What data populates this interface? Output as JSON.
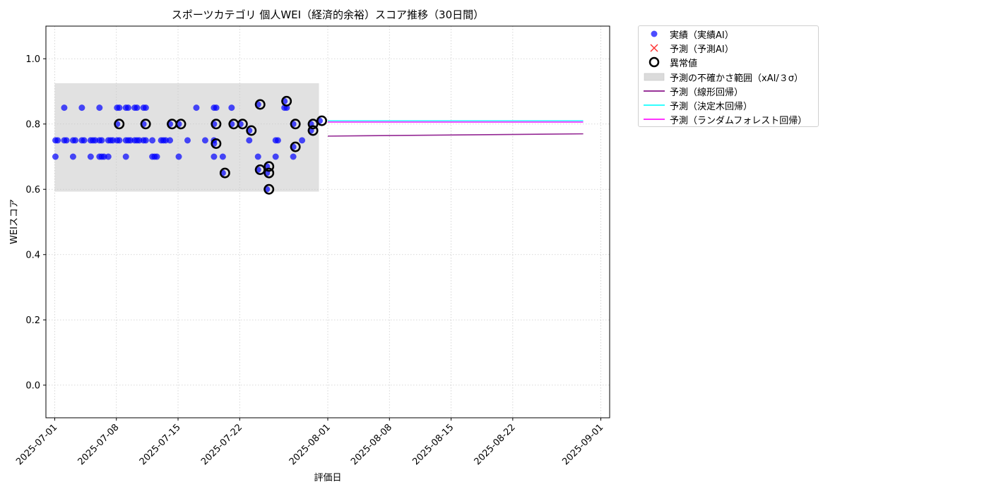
{
  "chart_data": {
    "type": "scatter",
    "title": "スポーツカテゴリ 個人WEI（経済的余裕）スコア推移（30日間）",
    "xlabel": "評価日",
    "ylabel": "WEIスコア",
    "xlim": [
      "2025-06-30",
      "2025-09-02"
    ],
    "ylim": [
      -0.1,
      1.1
    ],
    "x_ticks": [
      "2025-07-01",
      "2025-07-08",
      "2025-07-15",
      "2025-07-22",
      "2025-08-01",
      "2025-08-08",
      "2025-08-15",
      "2025-08-22",
      "2025-09-01"
    ],
    "y_ticks": [
      0.0,
      0.2,
      0.4,
      0.6,
      0.8,
      1.0
    ],
    "y_tick_labels": [
      "0.0",
      "0.2",
      "0.4",
      "0.6",
      "0.8",
      "1.0"
    ],
    "grid": true,
    "legend_placement": "outside-top-right",
    "colors": {
      "actual": "#0000ff",
      "predicted_marker": "#ff0000",
      "anomaly_edge": "#000000",
      "uncertainty_band": "#c8c8c8",
      "linear": "#800080",
      "decision_tree": "#00ffff",
      "random_forest": "#ff00ff",
      "grid": "#cccccc"
    },
    "uncertainty_band": {
      "x": [
        "2025-07-01",
        "2025-07-31"
      ],
      "y": [
        0.593,
        0.925
      ]
    },
    "series": [
      {
        "name": "実績（実績AI）",
        "kind": "scatter",
        "points": [
          [
            "2025-07-01",
            0.75
          ],
          [
            "2025-07-01",
            0.7
          ],
          [
            "2025-07-01",
            0.75
          ],
          [
            "2025-07-02",
            0.75
          ],
          [
            "2025-07-02",
            0.85
          ],
          [
            "2025-07-02",
            0.75
          ],
          [
            "2025-07-03",
            0.7
          ],
          [
            "2025-07-03",
            0.75
          ],
          [
            "2025-07-03",
            0.75
          ],
          [
            "2025-07-04",
            0.75
          ],
          [
            "2025-07-04",
            0.75
          ],
          [
            "2025-07-04",
            0.85
          ],
          [
            "2025-07-05",
            0.75
          ],
          [
            "2025-07-05",
            0.75
          ],
          [
            "2025-07-05",
            0.7
          ],
          [
            "2025-07-05",
            0.75
          ],
          [
            "2025-07-06",
            0.7
          ],
          [
            "2025-07-06",
            0.7
          ],
          [
            "2025-07-06",
            0.75
          ],
          [
            "2025-07-06",
            0.75
          ],
          [
            "2025-07-06",
            0.85
          ],
          [
            "2025-07-06",
            0.7
          ],
          [
            "2025-07-07",
            0.75
          ],
          [
            "2025-07-07",
            0.75
          ],
          [
            "2025-07-07",
            0.75
          ],
          [
            "2025-07-07",
            0.7
          ],
          [
            "2025-07-08",
            0.75
          ],
          [
            "2025-07-08",
            0.75
          ],
          [
            "2025-07-08",
            0.85
          ],
          [
            "2025-07-08",
            0.85
          ],
          [
            "2025-07-08",
            0.8
          ],
          [
            "2025-07-09",
            0.75
          ],
          [
            "2025-07-09",
            0.75
          ],
          [
            "2025-07-09",
            0.75
          ],
          [
            "2025-07-09",
            0.85
          ],
          [
            "2025-07-09",
            0.7
          ],
          [
            "2025-07-09",
            0.85
          ],
          [
            "2025-07-10",
            0.85
          ],
          [
            "2025-07-10",
            0.75
          ],
          [
            "2025-07-10",
            0.85
          ],
          [
            "2025-07-10",
            0.75
          ],
          [
            "2025-07-10",
            0.75
          ],
          [
            "2025-07-11",
            0.75
          ],
          [
            "2025-07-11",
            0.8
          ],
          [
            "2025-07-11",
            0.75
          ],
          [
            "2025-07-11",
            0.85
          ],
          [
            "2025-07-11",
            0.85
          ],
          [
            "2025-07-12",
            0.7
          ],
          [
            "2025-07-12",
            0.75
          ],
          [
            "2025-07-12",
            0.7
          ],
          [
            "2025-07-12",
            0.7
          ],
          [
            "2025-07-13",
            0.75
          ],
          [
            "2025-07-13",
            0.75
          ],
          [
            "2025-07-13",
            0.75
          ],
          [
            "2025-07-14",
            0.8
          ],
          [
            "2025-07-14",
            0.75
          ],
          [
            "2025-07-15",
            0.7
          ],
          [
            "2025-07-15",
            0.8
          ],
          [
            "2025-07-16",
            0.75
          ],
          [
            "2025-07-17",
            0.85
          ],
          [
            "2025-07-18",
            0.75
          ],
          [
            "2025-07-19",
            0.85
          ],
          [
            "2025-07-19",
            0.75
          ],
          [
            "2025-07-19",
            0.7
          ],
          [
            "2025-07-19",
            0.85
          ],
          [
            "2025-07-19",
            0.74
          ],
          [
            "2025-07-19",
            0.8
          ],
          [
            "2025-07-20",
            0.7
          ],
          [
            "2025-07-20",
            0.65
          ],
          [
            "2025-07-21",
            0.8
          ],
          [
            "2025-07-21",
            0.85
          ],
          [
            "2025-07-22",
            0.8
          ],
          [
            "2025-07-23",
            0.78
          ],
          [
            "2025-07-23",
            0.75
          ],
          [
            "2025-07-24",
            0.86
          ],
          [
            "2025-07-24",
            0.7
          ],
          [
            "2025-07-24",
            0.66
          ],
          [
            "2025-07-25",
            0.65
          ],
          [
            "2025-07-25",
            0.67
          ],
          [
            "2025-07-25",
            0.6
          ],
          [
            "2025-07-26",
            0.7
          ],
          [
            "2025-07-26",
            0.75
          ],
          [
            "2025-07-26",
            0.75
          ],
          [
            "2025-07-27",
            0.85
          ],
          [
            "2025-07-27",
            0.87
          ],
          [
            "2025-07-27",
            0.85
          ],
          [
            "2025-07-28",
            0.8
          ],
          [
            "2025-07-28",
            0.73
          ],
          [
            "2025-07-28",
            0.7
          ],
          [
            "2025-07-29",
            0.75
          ],
          [
            "2025-07-30",
            0.78
          ],
          [
            "2025-07-30",
            0.8
          ],
          [
            "2025-07-31",
            0.81
          ]
        ]
      },
      {
        "name": "予測（予測AI）",
        "kind": "marker",
        "points": []
      },
      {
        "name": "異常値",
        "kind": "anomaly",
        "points": [
          [
            "2025-07-08",
            0.8
          ],
          [
            "2025-07-11",
            0.8
          ],
          [
            "2025-07-14",
            0.8
          ],
          [
            "2025-07-15",
            0.8
          ],
          [
            "2025-07-19",
            0.74
          ],
          [
            "2025-07-19",
            0.8
          ],
          [
            "2025-07-20",
            0.65
          ],
          [
            "2025-07-21",
            0.8
          ],
          [
            "2025-07-22",
            0.8
          ],
          [
            "2025-07-23",
            0.78
          ],
          [
            "2025-07-24",
            0.86
          ],
          [
            "2025-07-24",
            0.66
          ],
          [
            "2025-07-25",
            0.65
          ],
          [
            "2025-07-25",
            0.67
          ],
          [
            "2025-07-25",
            0.6
          ],
          [
            "2025-07-27",
            0.87
          ],
          [
            "2025-07-28",
            0.8
          ],
          [
            "2025-07-28",
            0.73
          ],
          [
            "2025-07-30",
            0.78
          ],
          [
            "2025-07-30",
            0.8
          ],
          [
            "2025-07-31",
            0.81
          ]
        ]
      },
      {
        "name": "予測の不確かさ範囲（xAI/３σ）",
        "kind": "band"
      },
      {
        "name": "予測（線形回帰）",
        "kind": "line",
        "x": [
          "2025-08-01",
          "2025-08-30"
        ],
        "y": [
          0.763,
          0.77
        ]
      },
      {
        "name": "予測（決定木回帰）",
        "kind": "line",
        "x": [
          "2025-08-01",
          "2025-08-30"
        ],
        "y": [
          0.81,
          0.81
        ]
      },
      {
        "name": "予測（ランダムフォレスト回帰）",
        "kind": "line",
        "x": [
          "2025-08-01",
          "2025-08-30"
        ],
        "y": [
          0.806,
          0.806
        ]
      }
    ]
  },
  "legend": {
    "items": [
      {
        "label": "実績（実績AI）",
        "icon": "blue-dot-icon"
      },
      {
        "label": "予測（予測AI）",
        "icon": "red-x-icon"
      },
      {
        "label": "異常値",
        "icon": "black-ring-icon"
      },
      {
        "label": "予測の不確かさ範囲（xAI/３σ）",
        "icon": "gray-patch-icon"
      },
      {
        "label": "予測（線形回帰）",
        "icon": "purple-line-icon"
      },
      {
        "label": "予測（決定木回帰）",
        "icon": "cyan-line-icon"
      },
      {
        "label": "予測（ランダムフォレスト回帰）",
        "icon": "magenta-line-icon"
      }
    ]
  }
}
